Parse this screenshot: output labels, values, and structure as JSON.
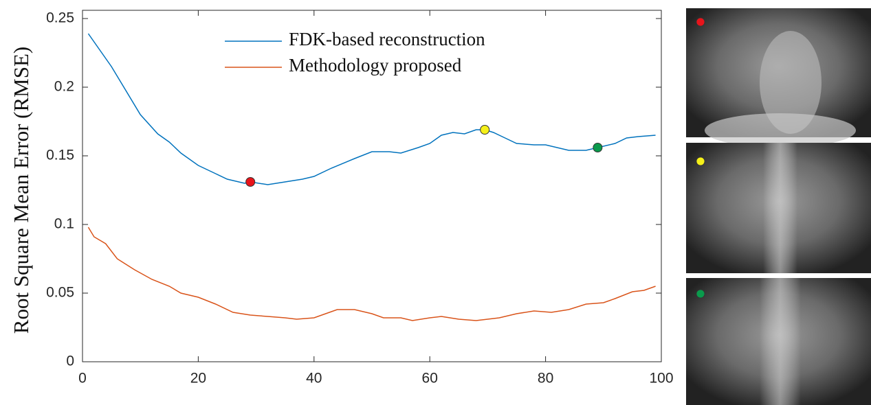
{
  "chart_data": {
    "type": "line",
    "ylabel": "Root Square Mean Error (RMSE)",
    "xlim": [
      0,
      100
    ],
    "ylim": [
      0,
      0.256
    ],
    "xticks": [
      0,
      20,
      40,
      60,
      80,
      100
    ],
    "yticks": [
      0,
      0.05,
      0.1,
      0.15,
      0.2,
      0.25
    ],
    "legend": "upper center",
    "series": [
      {
        "name": "FDK-based reconstruction",
        "color": "#0072bd",
        "x": [
          1,
          5,
          10,
          13,
          15,
          17,
          20,
          23,
          25,
          28,
          29,
          32,
          35,
          38,
          40,
          43,
          47,
          50,
          53,
          55,
          58,
          60,
          62,
          64,
          66,
          68,
          69.5,
          71,
          73,
          75,
          78,
          80,
          84,
          87,
          89,
          92,
          94,
          96,
          99
        ],
        "values": [
          0.239,
          0.215,
          0.18,
          0.166,
          0.16,
          0.152,
          0.143,
          0.137,
          0.133,
          0.13,
          0.131,
          0.129,
          0.131,
          0.133,
          0.135,
          0.141,
          0.148,
          0.153,
          0.153,
          0.152,
          0.156,
          0.159,
          0.165,
          0.167,
          0.166,
          0.169,
          0.169,
          0.167,
          0.163,
          0.159,
          0.158,
          0.158,
          0.154,
          0.154,
          0.156,
          0.159,
          0.163,
          0.164,
          0.165
        ]
      },
      {
        "name": "Methodology proposed",
        "color": "#d95319",
        "x": [
          1,
          2,
          4,
          6,
          9,
          12,
          15,
          17,
          20,
          23,
          26,
          29,
          32,
          35,
          37,
          40,
          42,
          44,
          47,
          50,
          52,
          55,
          57,
          60,
          62,
          65,
          68,
          72,
          75,
          78,
          81,
          84,
          87,
          90,
          92,
          95,
          97,
          99
        ],
        "values": [
          0.098,
          0.091,
          0.086,
          0.075,
          0.067,
          0.06,
          0.055,
          0.05,
          0.047,
          0.042,
          0.036,
          0.034,
          0.033,
          0.032,
          0.031,
          0.032,
          0.035,
          0.038,
          0.038,
          0.035,
          0.032,
          0.032,
          0.03,
          0.032,
          0.033,
          0.031,
          0.03,
          0.032,
          0.035,
          0.037,
          0.036,
          0.038,
          0.042,
          0.043,
          0.046,
          0.051,
          0.052,
          0.055
        ]
      }
    ],
    "highlights": [
      {
        "x": 29,
        "y": 0.131,
        "color": "#e8141b"
      },
      {
        "x": 69.5,
        "y": 0.169,
        "color": "#f5f019"
      },
      {
        "x": 89,
        "y": 0.156,
        "color": "#0a9a4c"
      }
    ]
  }
}
